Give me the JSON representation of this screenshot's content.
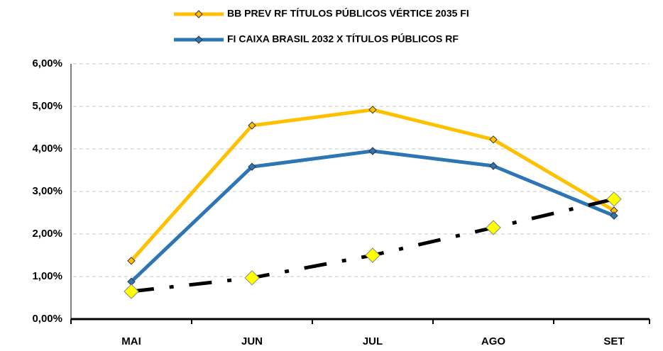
{
  "chart_data": {
    "type": "line",
    "categories": [
      "MAI",
      "JUN",
      "JUL",
      "AGO",
      "SET"
    ],
    "series": [
      {
        "name": "BB PREV RF TÍTULOS PÚBLICOS VÉRTICE 2035 FI",
        "color": "#FFC000",
        "values": [
          1.37,
          4.55,
          4.92,
          4.22,
          2.55
        ]
      },
      {
        "name": "FI CAIXA BRASIL 2032 X TÍTULOS PÚBLICOS RF",
        "color": "#2E75B6",
        "values": [
          0.88,
          3.58,
          3.95,
          3.6,
          2.43
        ]
      },
      {
        "color": "#000000",
        "values": [
          0.65,
          0.97,
          1.5,
          2.15,
          2.82
        ]
      }
    ],
    "ylim": [
      0,
      6
    ],
    "yticks": [
      {
        "value": 0,
        "label": "0,00%"
      },
      {
        "value": 1,
        "label": "1,00%"
      },
      {
        "value": 2,
        "label": "2,00%"
      },
      {
        "value": 3,
        "label": "3,00%"
      },
      {
        "value": 4,
        "label": "4,00%"
      },
      {
        "value": 5,
        "label": "5,00%"
      },
      {
        "value": 6,
        "label": "6,00%"
      }
    ],
    "grid": true
  }
}
